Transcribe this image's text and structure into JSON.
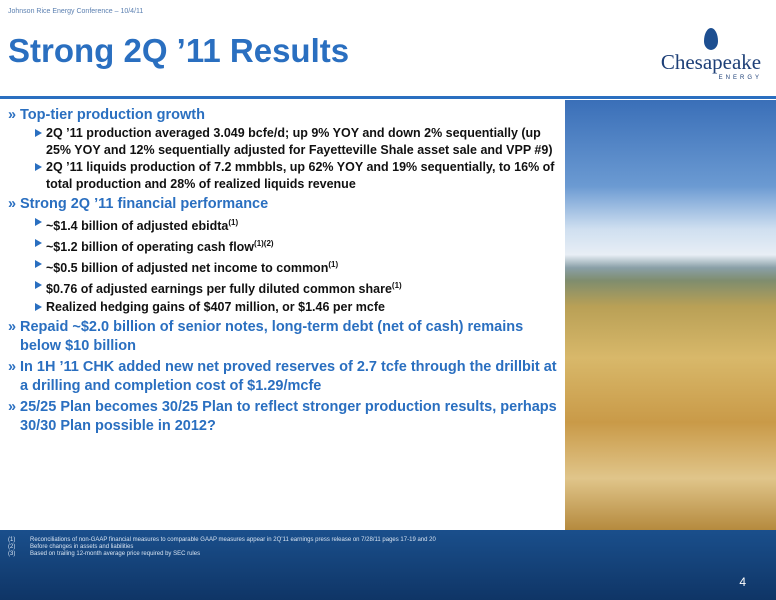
{
  "header": {
    "event": "Johnson Rice Energy Conference – 10/4/11",
    "title": "Strong 2Q ’11 Results",
    "logo": {
      "name": "Chesapeake",
      "tagline": "ENERGY"
    }
  },
  "bullets": [
    {
      "text": "Top-tier production growth",
      "subs": [
        {
          "text": "2Q ’11 production averaged 3.049 bcfe/d; up 9% YOY and down 2% sequentially (up 25% YOY and 12% sequentially adjusted for Fayetteville Shale asset sale and VPP #9)"
        },
        {
          "text": "2Q ’11 liquids production of 7.2 mmbbls, up 62% YOY and 19% sequentially, to 16% of total production and 28% of realized liquids revenue"
        }
      ]
    },
    {
      "text": "Strong 2Q ’11 financial performance",
      "subs": [
        {
          "text": "~$1.4 billion of adjusted ebidta",
          "sup": "(1)"
        },
        {
          "text": "~$1.2 billion of operating cash flow",
          "sup": "(1)(2)"
        },
        {
          "text": "~$0.5 billion of adjusted net income to common",
          "sup": "(1)"
        },
        {
          "text": "$0.76 of adjusted earnings per fully diluted common share",
          "sup": "(1)"
        },
        {
          "text": "Realized hedging gains of $407 million, or $1.46 per mcfe"
        }
      ]
    },
    {
      "text": "Repaid ~$2.0 billion of senior notes, long-term debt (net of cash) remains below $10 billion",
      "subs": []
    },
    {
      "text": "In 1H ’11 CHK added new net proved reserves of 2.7 tcfe through the drillbit at a drilling and completion cost of $1.29/mcfe",
      "subs": []
    },
    {
      "text": "25/25 Plan becomes 30/25 Plan to reflect stronger production results, perhaps 30/30 Plan possible in 2012?",
      "subs": []
    }
  ],
  "footnotes": [
    {
      "mark": "(1)",
      "text": "Reconciliations of non-GAAP financial measures to comparable GAAP measures appear in 2Q’11 earnings press release on 7/28/11 pages 17-19 and 20"
    },
    {
      "mark": "(2)",
      "text": "Before changes in assets and liabilities"
    },
    {
      "mark": "(3)",
      "text": "Based on trailing 12-month average price required by SEC rules"
    }
  ],
  "page_number": "4"
}
